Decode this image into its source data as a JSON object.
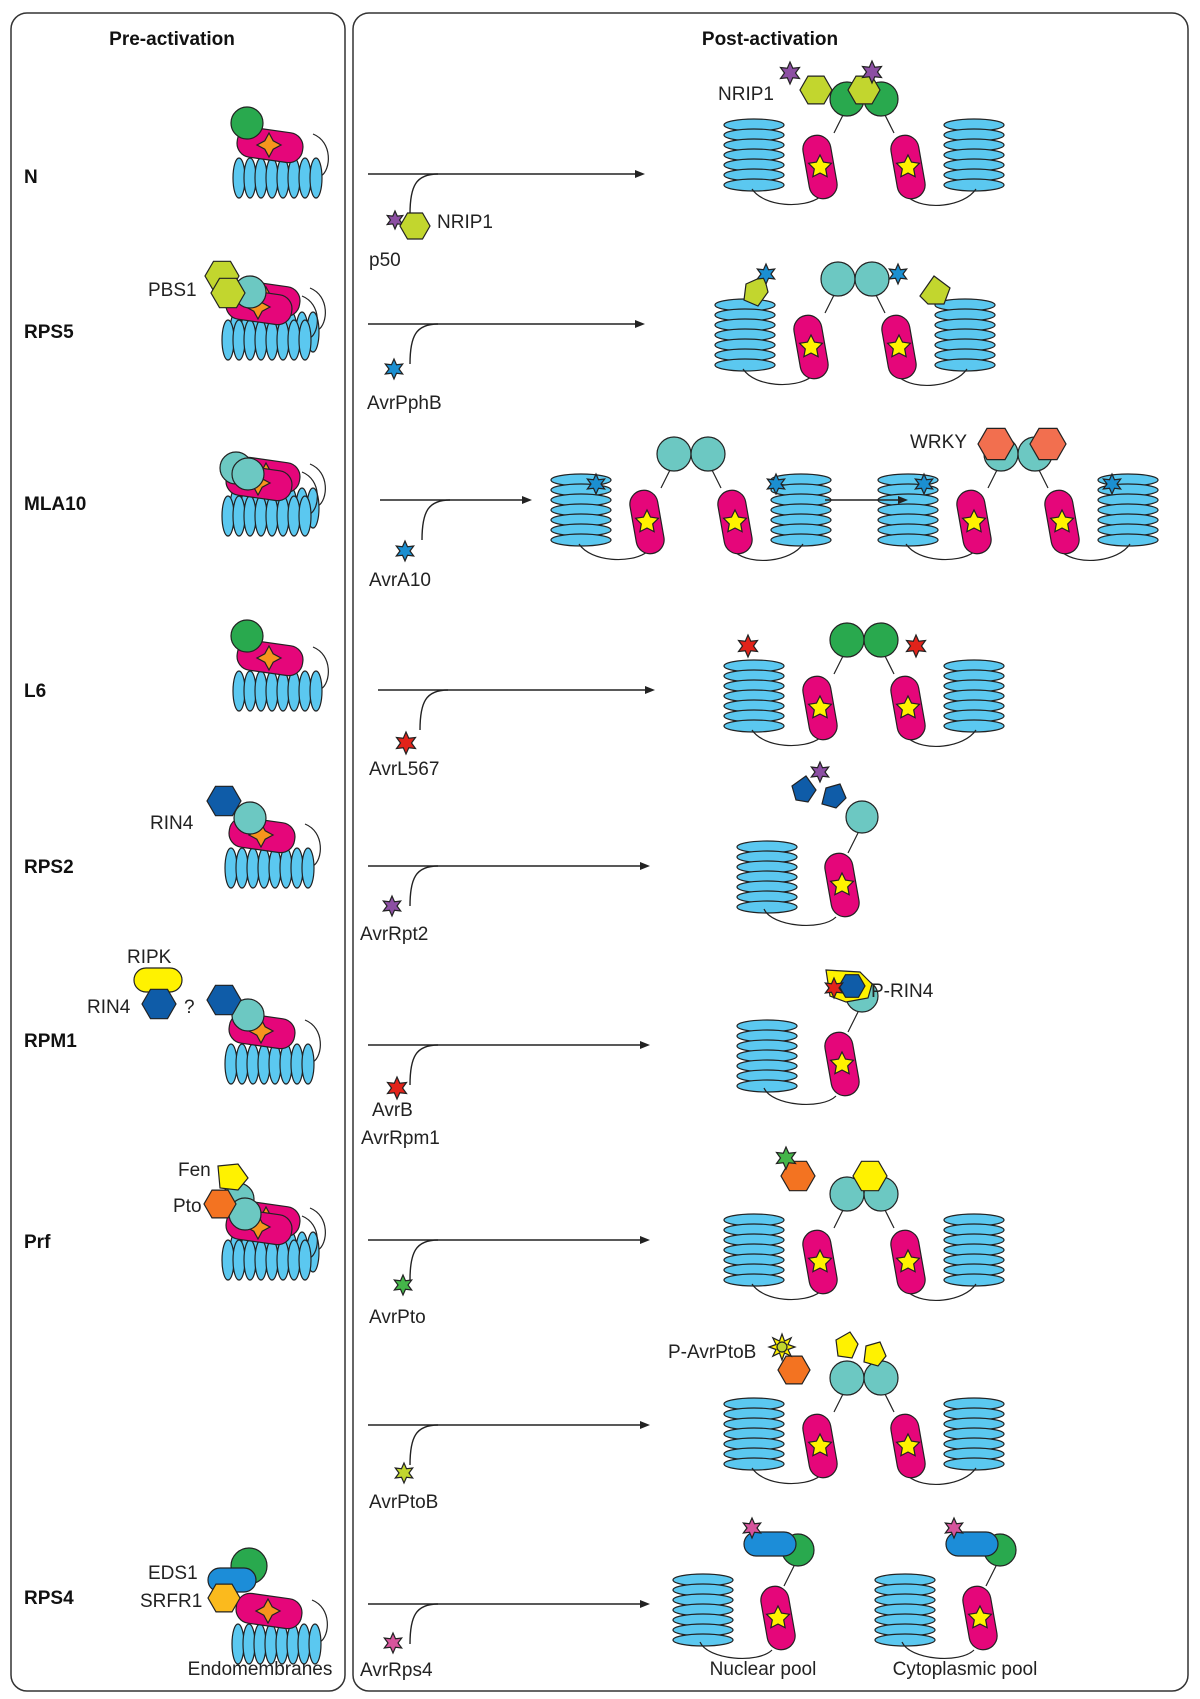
{
  "panels": {
    "pre": {
      "title": "Pre-activation",
      "footer": "Endomembranes"
    },
    "post": {
      "title": "Post-activation",
      "footer_left": "Nuclear pool",
      "footer_right": "Cytoplasmic pool"
    }
  },
  "colors": {
    "lrr": "#5bc8f0",
    "nbd": "#e5067a",
    "star_inactive": "#f7941d",
    "star_active": "#fff200",
    "cc_green": "#29a94e",
    "cc_teal": "#6cc8c2",
    "lime": "#c2d62e",
    "blue_effector": "#1b8fd1",
    "red_effector": "#e2231a",
    "purple_effector": "#8c4fa3",
    "dark_blue": "#0f5ca8",
    "yellow": "#fff200",
    "orange": "#f37321",
    "salmon": "#f26f4f",
    "green_effector": "#44b649",
    "pink_effector": "#d6549c",
    "eds1_blue": "#1c8dd8",
    "srfr1_gold": "#fbba1d"
  },
  "rows": [
    {
      "id": "N",
      "label": "N",
      "effectors": [
        "p50",
        "NRIP1"
      ],
      "post_labels": [
        "NRIP1"
      ]
    },
    {
      "id": "RPS5",
      "label": "RPS5",
      "pre_labels": [
        "PBS1"
      ],
      "effectors": [
        "AvrPphB"
      ]
    },
    {
      "id": "MLA10",
      "label": "MLA10",
      "effectors": [
        "AvrA10"
      ],
      "post_labels": [
        "WRKY"
      ]
    },
    {
      "id": "L6",
      "label": "L6",
      "effectors": [
        "AvrL567"
      ]
    },
    {
      "id": "RPS2",
      "label": "RPS2",
      "pre_labels": [
        "RIN4"
      ],
      "effectors": [
        "AvrRpt2"
      ]
    },
    {
      "id": "RPM1",
      "label": "RPM1",
      "pre_labels": [
        "RIPK",
        "RIN4",
        "?"
      ],
      "effectors": [
        "AvrB",
        "AvrRpm1"
      ],
      "post_labels": [
        "P-RIN4"
      ]
    },
    {
      "id": "Prf",
      "label": "Prf",
      "pre_labels": [
        "Fen",
        "Pto"
      ],
      "effectors": [
        "AvrPto"
      ]
    },
    {
      "id": "Prf_b",
      "label": "",
      "effectors": [
        "AvrPtoB"
      ],
      "post_labels": [
        "P-AvrPtoB"
      ]
    },
    {
      "id": "RPS4",
      "label": "RPS4",
      "pre_labels": [
        "EDS1",
        "SRFR1"
      ],
      "effectors": [
        "AvrRps4"
      ]
    }
  ]
}
